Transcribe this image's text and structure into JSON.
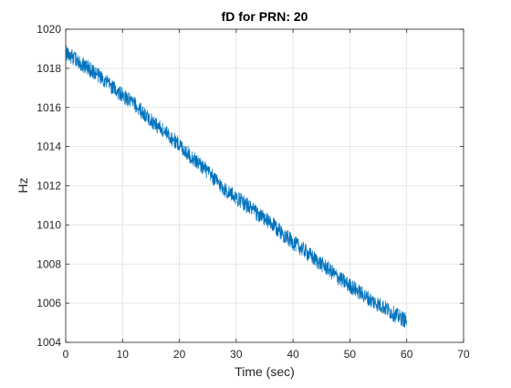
{
  "chart_data": {
    "type": "line",
    "title": "fD for PRN: 20",
    "xlabel": "Time (sec)",
    "ylabel": "Hz",
    "xlim": [
      0,
      70
    ],
    "ylim": [
      1004,
      1020
    ],
    "xticks": [
      0,
      10,
      20,
      30,
      40,
      50,
      60,
      70
    ],
    "yticks": [
      1004,
      1006,
      1008,
      1010,
      1012,
      1014,
      1016,
      1018,
      1020
    ],
    "xtick_labels": [
      "0",
      "10",
      "20",
      "30",
      "40",
      "50",
      "60",
      "70"
    ],
    "ytick_labels": [
      "1004",
      "1006",
      "1008",
      "1010",
      "1012",
      "1014",
      "1016",
      "1018",
      "1020"
    ],
    "grid": true,
    "series": [
      {
        "color": "#0072BD",
        "x": [
          0,
          2,
          4,
          6,
          8,
          10,
          12,
          14,
          16,
          18,
          20,
          22,
          24,
          26,
          28,
          30,
          32,
          34,
          36,
          38,
          40,
          42,
          44,
          46,
          48,
          50,
          52,
          54,
          56,
          58,
          60
        ],
        "y": [
          1018.8,
          1018.4,
          1018.0,
          1017.6,
          1017.1,
          1016.6,
          1016.2,
          1015.6,
          1015.1,
          1014.6,
          1014.1,
          1013.5,
          1013.0,
          1012.4,
          1011.8,
          1011.4,
          1011.0,
          1010.5,
          1010.1,
          1009.6,
          1009.1,
          1008.7,
          1008.2,
          1007.8,
          1007.3,
          1006.9,
          1006.5,
          1006.1,
          1005.8,
          1005.4,
          1005.1
        ],
        "noise_amplitude": 0.4
      }
    ]
  }
}
